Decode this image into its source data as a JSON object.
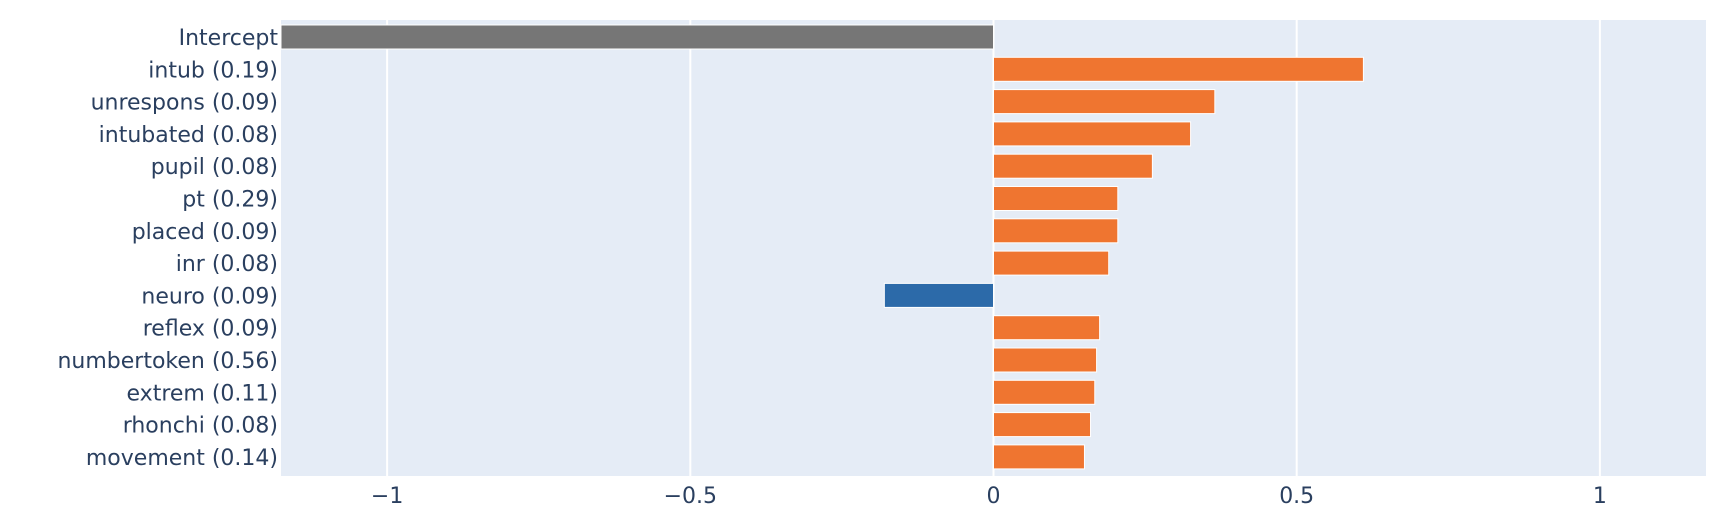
{
  "chart_data": {
    "type": "bar",
    "orientation": "horizontal",
    "categories": [
      "Intercept",
      "intub (0.19)",
      "unrespons (0.09)",
      "intubated (0.08)",
      "pupil (0.08)",
      "pt (0.29)",
      "placed (0.09)",
      "inr (0.08)",
      "neuro (0.09)",
      "reflex (0.09)",
      "numbertoken (0.56)",
      "extrem (0.11)",
      "rhonchi (0.08)",
      "movement (0.14)"
    ],
    "values": [
      -1.175,
      0.61,
      0.365,
      0.325,
      0.262,
      0.205,
      0.205,
      0.19,
      -0.18,
      0.175,
      0.17,
      0.167,
      0.16,
      0.15
    ],
    "bar_colors": [
      "#767676",
      "#ef7530",
      "#ef7530",
      "#ef7530",
      "#ef7530",
      "#ef7530",
      "#ef7530",
      "#ef7530",
      "#2c6aa9",
      "#ef7530",
      "#ef7530",
      "#ef7530",
      "#ef7530",
      "#ef7530"
    ],
    "xlim": [
      -1.175,
      1.175
    ],
    "xticks": [
      -1,
      -0.5,
      0,
      0.5,
      1
    ],
    "xtick_labels": [
      "−1",
      "−0.5",
      "0",
      "0.5",
      "1"
    ],
    "grid": true,
    "title": "",
    "xlabel": "",
    "ylabel": ""
  },
  "colors": {
    "plot_background": "#e5ecf6",
    "grid": "#ffffff",
    "text": "#2a3f5f"
  }
}
